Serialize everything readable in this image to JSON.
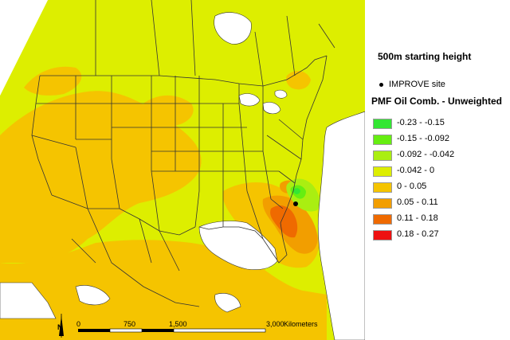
{
  "legend": {
    "title": "500m starting height",
    "site_label": "IMPROVE site",
    "layer_title": "PMF Oil Comb. - Unweighted",
    "classes": [
      {
        "label": "-0.23 - -0.15",
        "color": "#33e633"
      },
      {
        "label": "-0.15 - -0.092",
        "color": "#66ee11"
      },
      {
        "label": "-0.092 - -0.042",
        "color": "#aaee11"
      },
      {
        "label": "-0.042 - 0",
        "color": "#ddee00"
      },
      {
        "label": "0 - 0.05",
        "color": "#f5c400"
      },
      {
        "label": "0.05 - 0.11",
        "color": "#f29e00"
      },
      {
        "label": "0.11 - 0.18",
        "color": "#ef6a00"
      },
      {
        "label": "0.18 - 0.27",
        "color": "#ee1111"
      }
    ]
  },
  "scale": {
    "north": "N",
    "ticks": [
      "0",
      "750",
      "1,500",
      "3,000"
    ],
    "unit": "Kilometers"
  },
  "colors": {
    "background_field": "#ddee00",
    "water": "#ffffff",
    "boundary": "#333333"
  }
}
